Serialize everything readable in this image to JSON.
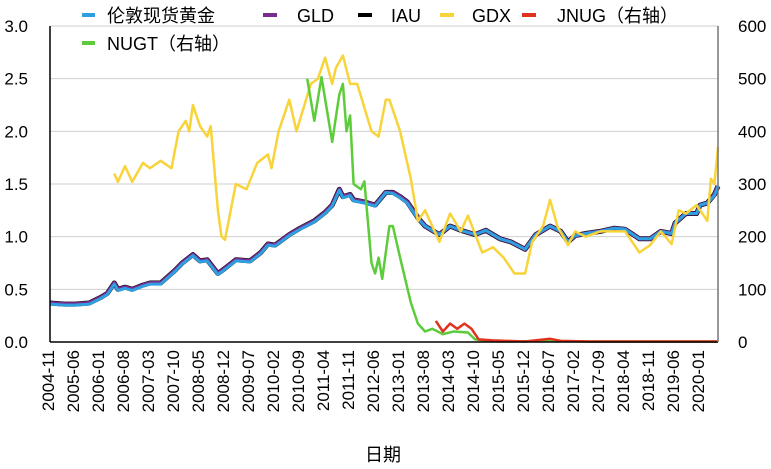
{
  "chart_data": {
    "type": "line",
    "xlabel": "日期",
    "ylabel": "",
    "ylabel_right": "",
    "ylim": [
      0,
      3.0
    ],
    "ylim_right": [
      0,
      600
    ],
    "yticks": [
      "0.0",
      "0.5",
      "1.0",
      "1.5",
      "2.0",
      "2.5",
      "3.0"
    ],
    "yticks_right": [
      "0",
      "100",
      "200",
      "300",
      "400",
      "500",
      "600"
    ],
    "grid": true,
    "legend_position": "top",
    "x_start": "2004-11",
    "x_end": "2020-06",
    "xticks": [
      "2004-11",
      "2005-06",
      "2006-01",
      "2006-08",
      "2007-03",
      "2007-10",
      "2008-05",
      "2008-12",
      "2009-07",
      "2010-02",
      "2010-09",
      "2011-04",
      "2011-11",
      "2012-06",
      "2013-01",
      "2013-08",
      "2014-03",
      "2014-10",
      "2015-05",
      "2015-12",
      "2016-07",
      "2017-02",
      "2017-09",
      "2018-04",
      "2018-11",
      "2019-06",
      "2020-01"
    ],
    "series": [
      {
        "name": "IAU",
        "axis": "left",
        "color": "#000000",
        "x": [
          "2004-11",
          "2005-03",
          "2005-06",
          "2005-10",
          "2006-01",
          "2006-03",
          "2006-05",
          "2006-06",
          "2006-08",
          "2006-10",
          "2007-01",
          "2007-03",
          "2007-06",
          "2007-10",
          "2007-12",
          "2008-03",
          "2008-05",
          "2008-07",
          "2008-10",
          "2008-12",
          "2009-03",
          "2009-07",
          "2009-10",
          "2009-12",
          "2010-02",
          "2010-06",
          "2010-09",
          "2011-01",
          "2011-04",
          "2011-06",
          "2011-08",
          "2011-09",
          "2011-11",
          "2011-12",
          "2012-03",
          "2012-06",
          "2012-09",
          "2012-11",
          "2013-01",
          "2013-03",
          "2013-06",
          "2013-08",
          "2013-12",
          "2014-03",
          "2014-06",
          "2014-10",
          "2015-01",
          "2015-05",
          "2015-08",
          "2015-12",
          "2016-03",
          "2016-07",
          "2016-10",
          "2016-12",
          "2017-02",
          "2017-05",
          "2017-09",
          "2018-01",
          "2018-04",
          "2018-08",
          "2018-11",
          "2019-02",
          "2019-05",
          "2019-06",
          "2019-09",
          "2019-12",
          "2020-01",
          "2020-03",
          "2020-05",
          "2020-06"
        ],
        "y": [
          0.37,
          0.36,
          0.36,
          0.37,
          0.42,
          0.46,
          0.56,
          0.5,
          0.52,
          0.5,
          0.54,
          0.56,
          0.56,
          0.68,
          0.75,
          0.83,
          0.77,
          0.78,
          0.65,
          0.7,
          0.78,
          0.77,
          0.85,
          0.93,
          0.92,
          1.02,
          1.08,
          1.15,
          1.23,
          1.3,
          1.45,
          1.38,
          1.4,
          1.35,
          1.33,
          1.3,
          1.42,
          1.42,
          1.38,
          1.33,
          1.18,
          1.1,
          1.02,
          1.1,
          1.06,
          1.02,
          1.06,
          0.98,
          0.95,
          0.88,
          1.02,
          1.1,
          1.05,
          0.95,
          1.01,
          1.03,
          1.05,
          1.08,
          1.07,
          0.98,
          0.98,
          1.05,
          1.03,
          1.13,
          1.22,
          1.22,
          1.3,
          1.32,
          1.4,
          1.48
        ]
      },
      {
        "name": "GLD",
        "axis": "left",
        "color": "#7b2a8e",
        "x": [
          "2004-11",
          "2005-03",
          "2005-06",
          "2005-10",
          "2006-01",
          "2006-03",
          "2006-05",
          "2006-06",
          "2006-08",
          "2006-10",
          "2007-01",
          "2007-03",
          "2007-06",
          "2007-10",
          "2007-12",
          "2008-03",
          "2008-05",
          "2008-07",
          "2008-10",
          "2008-12",
          "2009-03",
          "2009-07",
          "2009-10",
          "2009-12",
          "2010-02",
          "2010-06",
          "2010-09",
          "2011-01",
          "2011-04",
          "2011-06",
          "2011-08",
          "2011-09",
          "2011-11",
          "2011-12",
          "2012-03",
          "2012-06",
          "2012-09",
          "2012-11",
          "2013-01",
          "2013-03",
          "2013-06",
          "2013-08",
          "2013-12",
          "2014-03",
          "2014-06",
          "2014-10",
          "2015-01",
          "2015-05",
          "2015-08",
          "2015-12",
          "2016-03",
          "2016-07",
          "2016-10",
          "2016-12",
          "2017-02",
          "2017-05",
          "2017-09",
          "2018-01",
          "2018-04",
          "2018-08",
          "2018-11",
          "2019-02",
          "2019-05",
          "2019-06",
          "2019-09",
          "2019-12",
          "2020-01",
          "2020-03",
          "2020-05",
          "2020-06"
        ],
        "y": [
          0.37,
          0.36,
          0.36,
          0.37,
          0.42,
          0.46,
          0.56,
          0.5,
          0.52,
          0.5,
          0.54,
          0.56,
          0.56,
          0.68,
          0.75,
          0.83,
          0.77,
          0.78,
          0.65,
          0.7,
          0.78,
          0.77,
          0.85,
          0.93,
          0.92,
          1.02,
          1.08,
          1.15,
          1.23,
          1.3,
          1.45,
          1.38,
          1.4,
          1.35,
          1.33,
          1.3,
          1.42,
          1.42,
          1.38,
          1.33,
          1.18,
          1.1,
          1.02,
          1.1,
          1.06,
          1.02,
          1.06,
          0.98,
          0.95,
          0.88,
          1.02,
          1.1,
          1.05,
          0.95,
          1.01,
          1.03,
          1.05,
          1.08,
          1.07,
          0.98,
          0.98,
          1.05,
          1.03,
          1.13,
          1.22,
          1.22,
          1.3,
          1.32,
          1.4,
          1.48
        ]
      },
      {
        "name": "伦敦现货黄金",
        "axis": "left",
        "color": "#2e9fe0",
        "x": [
          "2004-11",
          "2005-03",
          "2005-06",
          "2005-10",
          "2006-01",
          "2006-03",
          "2006-05",
          "2006-06",
          "2006-08",
          "2006-10",
          "2007-01",
          "2007-03",
          "2007-06",
          "2007-10",
          "2007-12",
          "2008-03",
          "2008-05",
          "2008-07",
          "2008-10",
          "2008-12",
          "2009-03",
          "2009-07",
          "2009-10",
          "2009-12",
          "2010-02",
          "2010-06",
          "2010-09",
          "2011-01",
          "2011-04",
          "2011-06",
          "2011-08",
          "2011-09",
          "2011-11",
          "2011-12",
          "2012-03",
          "2012-06",
          "2012-09",
          "2012-11",
          "2013-01",
          "2013-03",
          "2013-06",
          "2013-08",
          "2013-12",
          "2014-03",
          "2014-06",
          "2014-10",
          "2015-01",
          "2015-05",
          "2015-08",
          "2015-12",
          "2016-03",
          "2016-07",
          "2016-10",
          "2016-12",
          "2017-02",
          "2017-05",
          "2017-09",
          "2018-01",
          "2018-04",
          "2018-08",
          "2018-11",
          "2019-02",
          "2019-05",
          "2019-06",
          "2019-09",
          "2019-12",
          "2020-01",
          "2020-03",
          "2020-05",
          "2020-06"
        ],
        "y": [
          0.36,
          0.35,
          0.35,
          0.36,
          0.41,
          0.45,
          0.55,
          0.49,
          0.51,
          0.49,
          0.53,
          0.55,
          0.55,
          0.67,
          0.74,
          0.82,
          0.76,
          0.77,
          0.64,
          0.69,
          0.77,
          0.76,
          0.84,
          0.92,
          0.91,
          1.01,
          1.07,
          1.14,
          1.22,
          1.29,
          1.44,
          1.37,
          1.39,
          1.34,
          1.32,
          1.29,
          1.42,
          1.41,
          1.37,
          1.32,
          1.17,
          1.1,
          1.02,
          1.1,
          1.06,
          1.02,
          1.06,
          0.98,
          0.95,
          0.88,
          1.02,
          1.1,
          1.05,
          0.95,
          1.01,
          1.03,
          1.05,
          1.08,
          1.07,
          0.98,
          0.98,
          1.05,
          1.03,
          1.13,
          1.22,
          1.22,
          1.3,
          1.32,
          1.39,
          1.48
        ]
      },
      {
        "name": "GDX",
        "axis": "left",
        "color": "#f8d43a",
        "x": [
          "2006-05",
          "2006-06",
          "2006-08",
          "2006-10",
          "2007-01",
          "2007-03",
          "2007-06",
          "2007-09",
          "2007-11",
          "2008-01",
          "2008-02",
          "2008-03",
          "2008-05",
          "2008-07",
          "2008-08",
          "2008-10",
          "2008-11",
          "2008-12",
          "2009-03",
          "2009-06",
          "2009-09",
          "2009-12",
          "2010-01",
          "2010-03",
          "2010-06",
          "2010-08",
          "2010-12",
          "2011-02",
          "2011-04",
          "2011-06",
          "2011-07",
          "2011-09",
          "2011-11",
          "2012-01",
          "2012-05",
          "2012-07",
          "2012-09",
          "2012-10",
          "2013-01",
          "2013-04",
          "2013-06",
          "2013-08",
          "2013-12",
          "2014-03",
          "2014-06",
          "2014-08",
          "2014-12",
          "2015-03",
          "2015-06",
          "2015-09",
          "2015-12",
          "2016-02",
          "2016-05",
          "2016-07",
          "2016-09",
          "2016-12",
          "2017-02",
          "2017-05",
          "2017-09",
          "2018-01",
          "2018-04",
          "2018-08",
          "2018-11",
          "2019-02",
          "2019-05",
          "2019-07",
          "2019-09",
          "2019-12",
          "2020-03",
          "2020-04",
          "2020-05",
          "2020-06"
        ],
        "y": [
          1.6,
          1.52,
          1.67,
          1.52,
          1.7,
          1.65,
          1.72,
          1.65,
          2.0,
          2.1,
          2.0,
          2.25,
          2.05,
          1.95,
          2.05,
          1.25,
          1.0,
          0.97,
          1.5,
          1.45,
          1.7,
          1.78,
          1.65,
          2.0,
          2.3,
          2.0,
          2.45,
          2.5,
          2.7,
          2.45,
          2.6,
          2.72,
          2.45,
          2.45,
          2.0,
          1.95,
          2.3,
          2.3,
          2.0,
          1.55,
          1.15,
          1.25,
          0.95,
          1.22,
          1.05,
          1.2,
          0.85,
          0.9,
          0.8,
          0.65,
          0.65,
          0.95,
          1.1,
          1.35,
          1.1,
          0.92,
          1.05,
          1.0,
          1.05,
          1.05,
          1.05,
          0.85,
          0.92,
          1.05,
          0.93,
          1.25,
          1.22,
          1.3,
          1.15,
          1.55,
          1.5,
          1.85
        ]
      },
      {
        "name": "NUGT（右轴）",
        "axis": "right",
        "color": "#5ccc3a",
        "x": [
          "2010-11",
          "2011-01",
          "2011-03",
          "2011-06",
          "2011-08",
          "2011-09",
          "2011-10",
          "2011-11",
          "2011-12",
          "2012-02",
          "2012-03",
          "2012-05",
          "2012-06",
          "2012-07",
          "2012-08",
          "2012-10",
          "2012-11",
          "2013-01",
          "2013-04",
          "2013-06",
          "2013-08",
          "2013-10",
          "2014-01",
          "2014-04",
          "2014-08",
          "2014-10",
          "2015-01",
          "2015-06",
          "2016-07",
          "2017-06",
          "2018-06",
          "2019-06",
          "2020-06"
        ],
        "y": [
          500,
          420,
          503,
          380,
          470,
          490,
          400,
          430,
          300,
          290,
          305,
          150,
          130,
          160,
          120,
          220,
          220,
          160,
          75,
          35,
          20,
          25,
          15,
          20,
          18,
          5,
          2,
          1,
          2,
          1,
          1,
          1,
          1
        ]
      },
      {
        "name": "JNUG（右轴）",
        "axis": "right",
        "color": "#e0321e",
        "x": [
          "2013-11",
          "2014-01",
          "2014-03",
          "2014-05",
          "2014-07",
          "2014-09",
          "2014-11",
          "2015-03",
          "2015-12",
          "2016-07",
          "2016-10",
          "2017-06",
          "2018-06",
          "2019-06",
          "2020-06"
        ],
        "y": [
          40,
          20,
          35,
          25,
          35,
          25,
          5,
          3,
          1,
          6,
          2,
          1,
          1,
          1,
          1
        ]
      }
    ],
    "legend": [
      "伦敦现货黄金",
      "GLD",
      "IAU",
      "GDX",
      "JNUG（右轴）",
      "NUGT（右轴）"
    ]
  }
}
